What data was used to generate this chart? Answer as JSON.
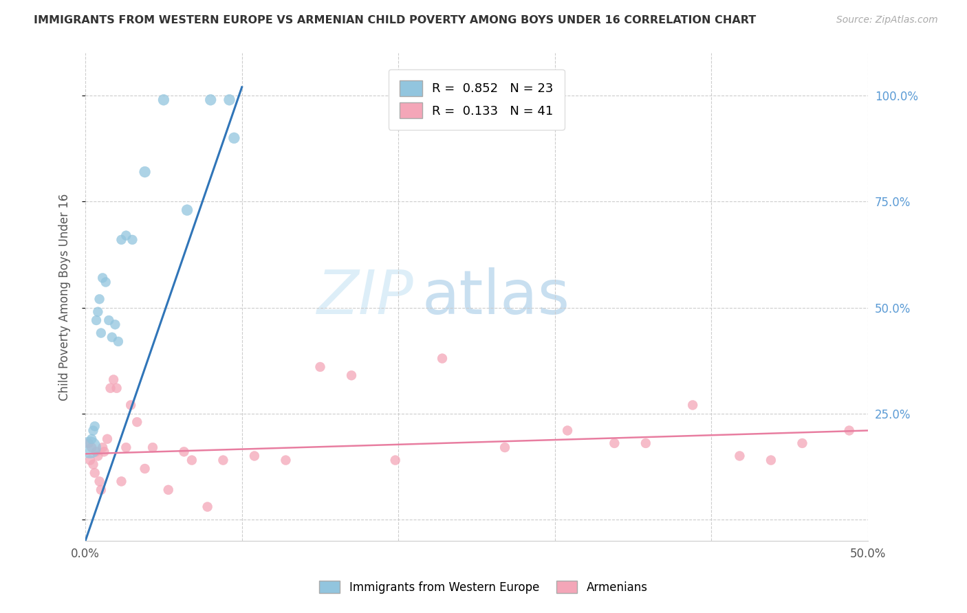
{
  "title": "IMMIGRANTS FROM WESTERN EUROPE VS ARMENIAN CHILD POVERTY AMONG BOYS UNDER 16 CORRELATION CHART",
  "source": "Source: ZipAtlas.com",
  "ylabel": "Child Poverty Among Boys Under 16",
  "xlim": [
    0.0,
    0.5
  ],
  "ylim": [
    -0.05,
    1.1
  ],
  "xticks": [
    0.0,
    0.1,
    0.2,
    0.3,
    0.4,
    0.5
  ],
  "yticks": [
    0.0,
    0.25,
    0.5,
    0.75,
    1.0
  ],
  "xticklabels": [
    "0.0%",
    "",
    "",
    "",
    "",
    "50.0%"
  ],
  "yticklabels_right": [
    "",
    "25.0%",
    "50.0%",
    "75.0%",
    "100.0%"
  ],
  "watermark_zip": "ZIP",
  "watermark_atlas": "atlas",
  "legend_blue_R": "R =  0.852",
  "legend_blue_N": "N = 23",
  "legend_pink_R": "R =  0.133",
  "legend_pink_N": "N = 41",
  "blue_color": "#92c5de",
  "pink_color": "#f4a6b8",
  "blue_line_color": "#3075b8",
  "pink_line_color": "#e87da0",
  "background_color": "#ffffff",
  "blue_scatter_x": [
    0.003,
    0.004,
    0.005,
    0.006,
    0.007,
    0.008,
    0.009,
    0.01,
    0.011,
    0.013,
    0.015,
    0.017,
    0.019,
    0.021,
    0.023,
    0.026,
    0.03,
    0.038,
    0.05,
    0.065,
    0.08,
    0.095,
    0.092
  ],
  "blue_scatter_y": [
    0.17,
    0.19,
    0.21,
    0.22,
    0.47,
    0.49,
    0.52,
    0.44,
    0.57,
    0.56,
    0.47,
    0.43,
    0.46,
    0.42,
    0.66,
    0.67,
    0.66,
    0.82,
    0.99,
    0.73,
    0.99,
    0.9,
    0.99
  ],
  "blue_scatter_sizes": [
    500,
    100,
    100,
    100,
    100,
    100,
    100,
    100,
    100,
    100,
    100,
    100,
    100,
    100,
    100,
    100,
    100,
    130,
    130,
    130,
    130,
    130,
    130
  ],
  "pink_scatter_x": [
    0.002,
    0.003,
    0.004,
    0.005,
    0.006,
    0.007,
    0.008,
    0.009,
    0.01,
    0.011,
    0.012,
    0.014,
    0.016,
    0.018,
    0.02,
    0.023,
    0.026,
    0.029,
    0.033,
    0.038,
    0.043,
    0.053,
    0.063,
    0.068,
    0.078,
    0.088,
    0.108,
    0.128,
    0.15,
    0.17,
    0.198,
    0.228,
    0.268,
    0.308,
    0.338,
    0.358,
    0.388,
    0.418,
    0.438,
    0.458,
    0.488
  ],
  "pink_scatter_y": [
    0.18,
    0.14,
    0.17,
    0.13,
    0.11,
    0.16,
    0.15,
    0.09,
    0.07,
    0.17,
    0.16,
    0.19,
    0.31,
    0.33,
    0.31,
    0.09,
    0.17,
    0.27,
    0.23,
    0.12,
    0.17,
    0.07,
    0.16,
    0.14,
    0.03,
    0.14,
    0.15,
    0.14,
    0.36,
    0.34,
    0.14,
    0.38,
    0.17,
    0.21,
    0.18,
    0.18,
    0.27,
    0.15,
    0.14,
    0.18,
    0.21
  ],
  "pink_scatter_sizes": [
    100,
    100,
    100,
    100,
    100,
    100,
    100,
    100,
    100,
    100,
    100,
    100,
    100,
    100,
    100,
    100,
    100,
    100,
    100,
    100,
    100,
    100,
    100,
    100,
    100,
    100,
    100,
    100,
    100,
    100,
    100,
    100,
    100,
    100,
    100,
    100,
    100,
    100,
    100,
    100,
    100
  ],
  "blue_trendline_x": [
    0.0,
    0.1
  ],
  "blue_trendline_y": [
    -0.05,
    1.02
  ],
  "pink_trendline_x": [
    0.0,
    0.5
  ],
  "pink_trendline_y": [
    0.155,
    0.21
  ]
}
